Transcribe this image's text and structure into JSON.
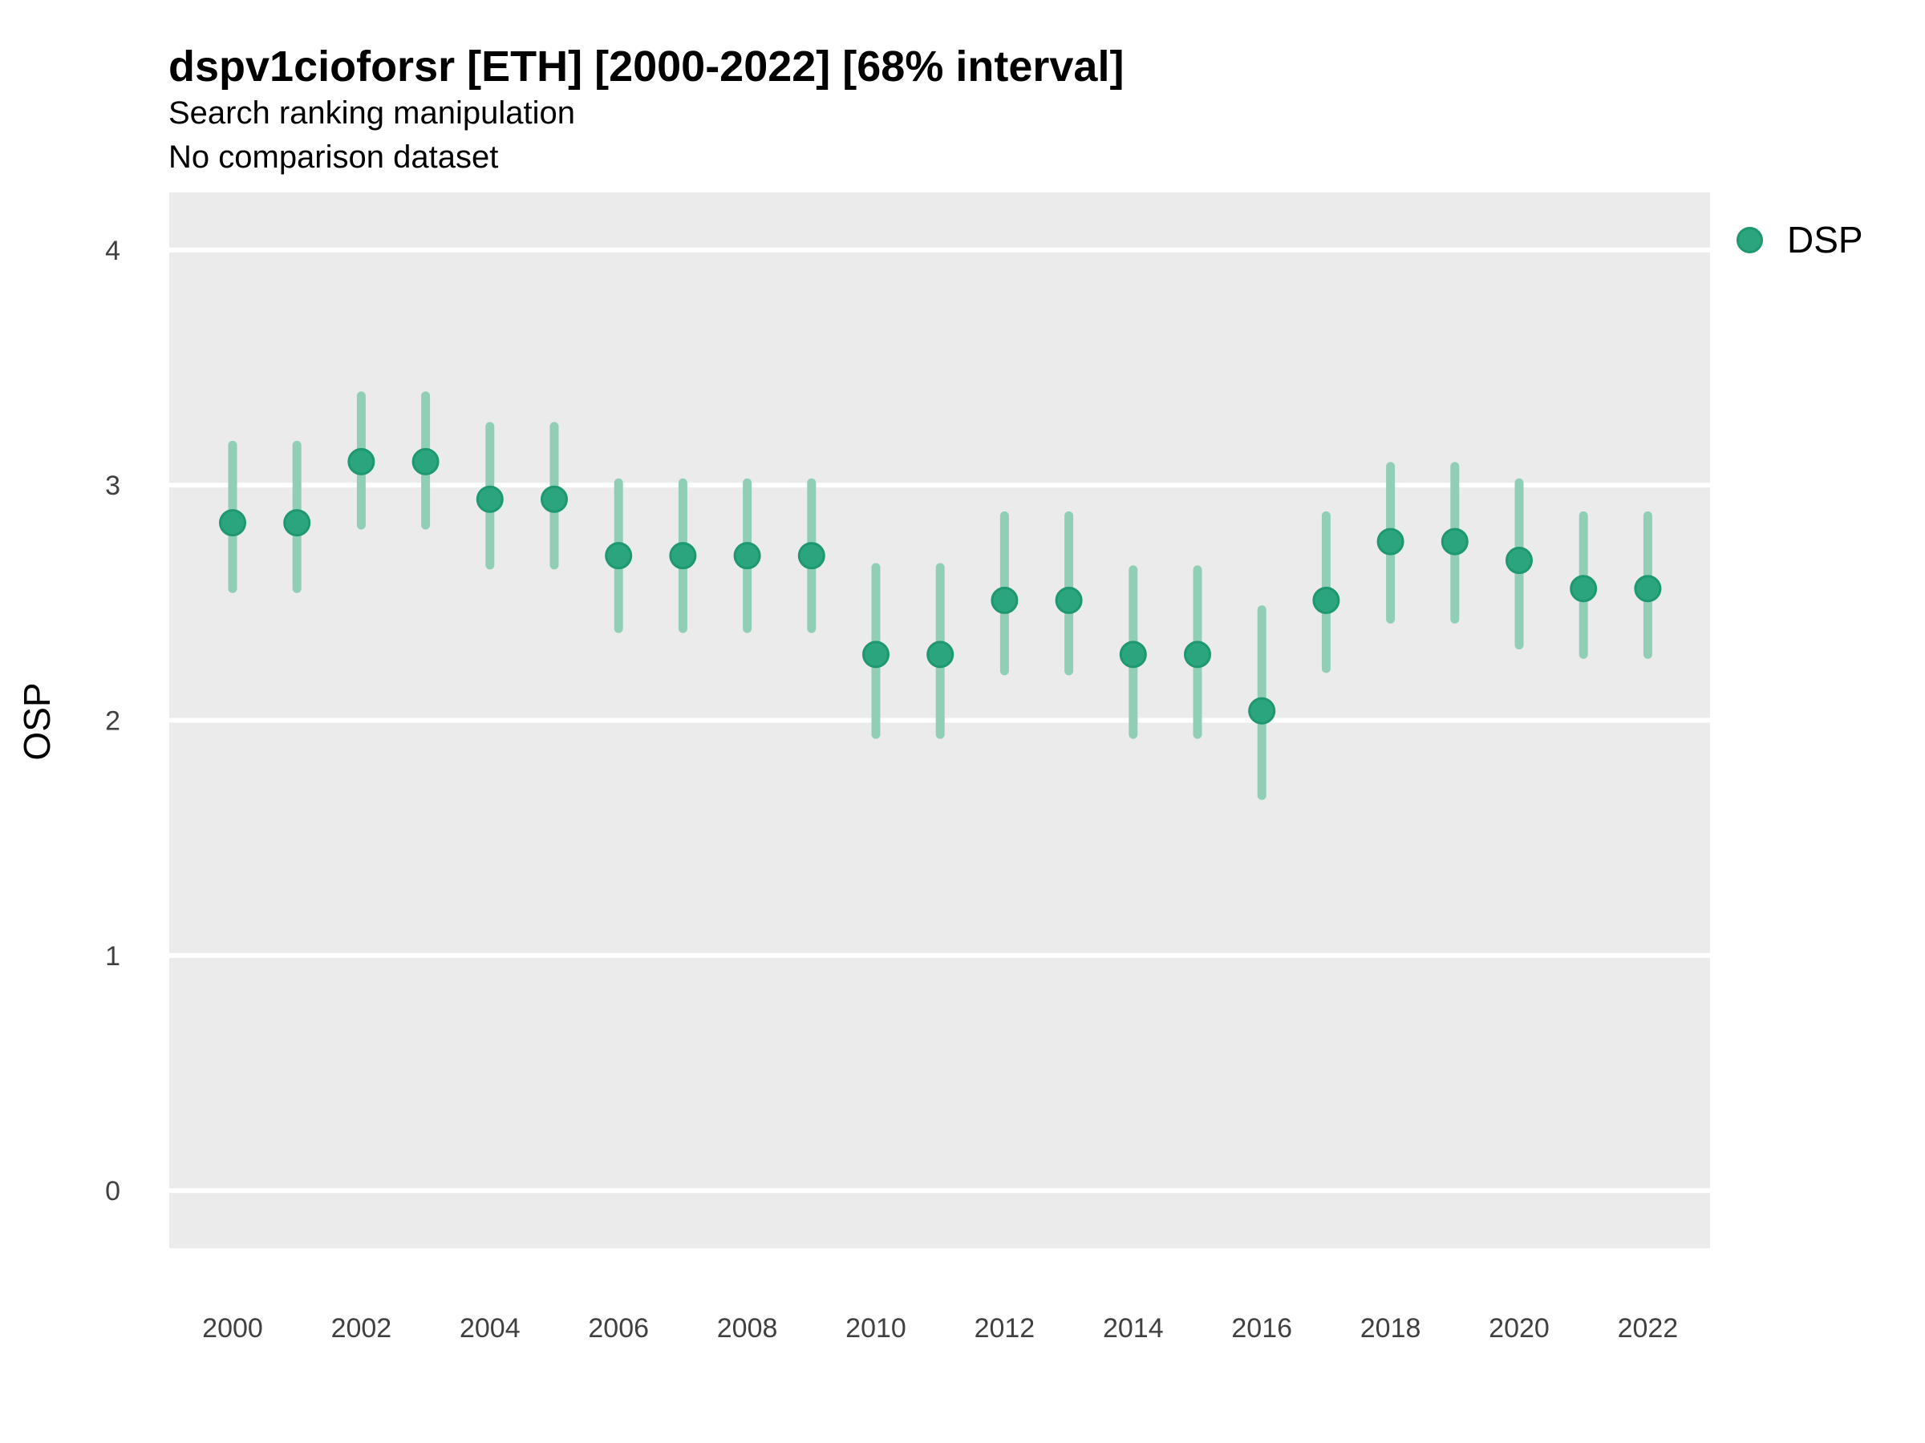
{
  "header": {
    "title": "dspv1cioforsr [ETH] [2000-2022] [68% interval]",
    "subtitle": "Search ranking manipulation",
    "note": "No comparison dataset"
  },
  "axes": {
    "y_title": "OSP",
    "y_ticks": [
      "0",
      "1",
      "2",
      "3",
      "4"
    ],
    "x_ticks": [
      "2000",
      "2002",
      "2004",
      "2006",
      "2008",
      "2010",
      "2012",
      "2014",
      "2016",
      "2018",
      "2020",
      "2022"
    ]
  },
  "legend": {
    "items": [
      {
        "label": "DSP",
        "color": "#2ba57d"
      }
    ],
    "position": "top-right"
  },
  "colors": {
    "panel_bg": "#ebebeb",
    "gridline": "#ffffff",
    "point_fill": "#2ba57d",
    "point_stroke": "#1e9870",
    "interval_bar": "#90cfb6",
    "tick_text": "#404040",
    "title_text": "#000000"
  },
  "chart_data": {
    "type": "pointrange",
    "title": "dspv1cioforsr [ETH] [2000-2022] [68% interval]",
    "subtitle": "Search ranking manipulation",
    "note": "No comparison dataset",
    "xlabel": "",
    "ylabel": "OSP",
    "ylim": [
      0,
      4
    ],
    "y_tick_values": [
      0,
      1,
      2,
      3,
      4
    ],
    "x_tick_values": [
      2000,
      2002,
      2004,
      2006,
      2008,
      2010,
      2012,
      2014,
      2016,
      2018,
      2020,
      2022
    ],
    "interval_level": "68%",
    "grid": "horizontal-major-white-on-gray-panel",
    "legend_position": "top-right",
    "series": [
      {
        "name": "DSP",
        "years": [
          2000,
          2001,
          2002,
          2003,
          2004,
          2005,
          2006,
          2007,
          2008,
          2009,
          2010,
          2011,
          2012,
          2013,
          2014,
          2015,
          2016,
          2017,
          2018,
          2019,
          2020,
          2021,
          2022
        ],
        "values": [
          2.84,
          2.84,
          3.1,
          3.1,
          2.94,
          2.94,
          2.7,
          2.7,
          2.7,
          2.7,
          2.28,
          2.28,
          2.51,
          2.51,
          2.28,
          2.28,
          2.04,
          2.51,
          2.76,
          2.76,
          2.68,
          2.56,
          2.56
        ],
        "lower": [
          2.56,
          2.56,
          2.83,
          2.83,
          2.66,
          2.66,
          2.39,
          2.39,
          2.39,
          2.39,
          1.94,
          1.94,
          2.21,
          2.21,
          1.94,
          1.94,
          1.68,
          2.22,
          2.43,
          2.43,
          2.32,
          2.28,
          2.28
        ],
        "upper": [
          3.17,
          3.17,
          3.38,
          3.38,
          3.25,
          3.25,
          3.01,
          3.01,
          3.01,
          3.01,
          2.65,
          2.65,
          2.87,
          2.87,
          2.64,
          2.64,
          2.47,
          2.87,
          3.08,
          3.08,
          3.01,
          2.87,
          2.87
        ]
      }
    ]
  }
}
